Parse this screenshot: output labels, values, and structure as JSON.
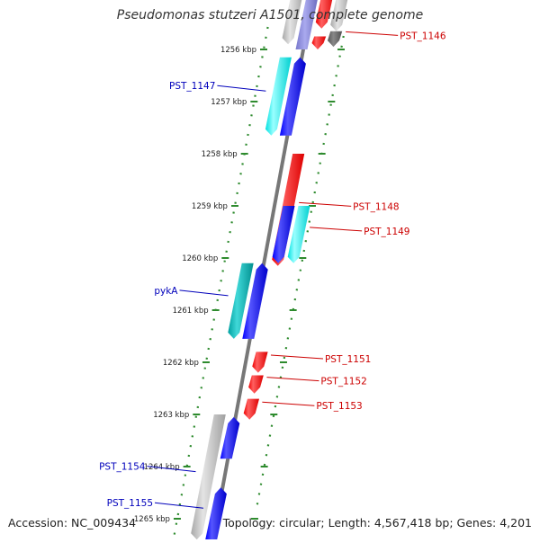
{
  "title": "Pseudomonas stutzeri A1501, complete genome",
  "accession": "Accession: NC_009434",
  "summary": "Topology: circular; Length: 4,567,418 bp; Genes: 4,201",
  "colors": {
    "backbone": "#777777",
    "tick": "#2e8b2e",
    "label_blue": "#0000bb",
    "label_red": "#cc0000",
    "blue": "#0000ff",
    "cyan": "#00f0f0",
    "teal": "#00b0b0",
    "red": "#ff0000",
    "gray": "#b8b8b8",
    "dark_gray": "#666666",
    "lavender": "#8888dd"
  },
  "scale": {
    "unit": "kbp",
    "ticks": [
      {
        "kbp": 1256,
        "label": "1256 kbp"
      },
      {
        "kbp": 1257,
        "label": "1257 kbp"
      },
      {
        "kbp": 1258,
        "label": "1258 kbp"
      },
      {
        "kbp": 1259,
        "label": "1259 kbp"
      },
      {
        "kbp": 1260,
        "label": "1260 kbp"
      },
      {
        "kbp": 1261,
        "label": "1261 kbp"
      },
      {
        "kbp": 1262,
        "label": "1262 kbp"
      },
      {
        "kbp": 1263,
        "label": "1263 kbp"
      },
      {
        "kbp": 1264,
        "label": "1264 kbp"
      },
      {
        "kbp": 1265,
        "label": "1265 kbp"
      }
    ]
  },
  "features": [
    {
      "name": "",
      "side": "left",
      "lane": "outer",
      "start": 1254.8,
      "end": 1256.0,
      "color": "lavender",
      "strand": 1
    },
    {
      "name": "",
      "side": "left",
      "lane": "inner",
      "start": 1254.8,
      "end": 1255.9,
      "color": "gray",
      "strand": -1
    },
    {
      "name": "PST_1147",
      "side": "left",
      "lane": "inner",
      "start": 1256.15,
      "end": 1257.65,
      "color": "cyan",
      "strand": -1
    },
    {
      "name": "",
      "side": "left",
      "lane": "outer",
      "start": 1256.15,
      "end": 1257.65,
      "color": "blue",
      "strand": 1
    },
    {
      "name": "pykA",
      "side": "left",
      "lane": "inner",
      "start": 1260.1,
      "end": 1261.55,
      "color": "teal",
      "strand": -1
    },
    {
      "name": "",
      "side": "left",
      "lane": "outer",
      "start": 1260.1,
      "end": 1261.55,
      "color": "blue",
      "strand": 1
    },
    {
      "name": "PST_1154",
      "side": "left",
      "lane": "inner",
      "start": 1263.0,
      "end": 1265.4,
      "color": "gray",
      "strand": -1
    },
    {
      "name": "",
      "side": "left",
      "lane": "outer",
      "start": 1263.05,
      "end": 1263.85,
      "color": "blue",
      "strand": 1
    },
    {
      "name": "PST_1155",
      "side": "left",
      "lane": "outer",
      "start": 1264.4,
      "end": 1265.4,
      "color": "blue",
      "strand": 1
    },
    {
      "name": "",
      "side": "right",
      "lane": "inner",
      "start": 1254.8,
      "end": 1255.6,
      "color": "red",
      "strand": -1
    },
    {
      "name": "",
      "side": "right",
      "lane": "outer",
      "start": 1254.8,
      "end": 1255.65,
      "color": "gray",
      "strand": -1
    },
    {
      "name": "PST_1146",
      "side": "right",
      "lane": "outer",
      "start": 1255.65,
      "end": 1255.95,
      "color": "dark_gray",
      "strand": -1
    },
    {
      "name": "",
      "side": "right",
      "lane": "inner",
      "start": 1255.75,
      "end": 1256.0,
      "color": "red",
      "strand": -1
    },
    {
      "name": "PST_1148",
      "side": "right",
      "lane": "inner",
      "start": 1258.0,
      "end": 1260.15,
      "color": "red",
      "strand": -1
    },
    {
      "name": "PST_1149",
      "side": "right",
      "lane": "outer",
      "start": 1259.0,
      "end": 1260.1,
      "color": "cyan",
      "strand": -1
    },
    {
      "name": "",
      "side": "right",
      "lane": "inner",
      "start": 1259.0,
      "end": 1260.1,
      "color": "blue",
      "strand": -1
    },
    {
      "name": "PST_1151",
      "side": "right",
      "lane": "inner",
      "start": 1261.8,
      "end": 1262.2,
      "color": "red",
      "strand": -1
    },
    {
      "name": "PST_1152",
      "side": "right",
      "lane": "inner",
      "start": 1262.25,
      "end": 1262.6,
      "color": "red",
      "strand": -1
    },
    {
      "name": "PST_1153",
      "side": "right",
      "lane": "inner",
      "start": 1262.7,
      "end": 1263.1,
      "color": "red",
      "strand": -1
    }
  ]
}
